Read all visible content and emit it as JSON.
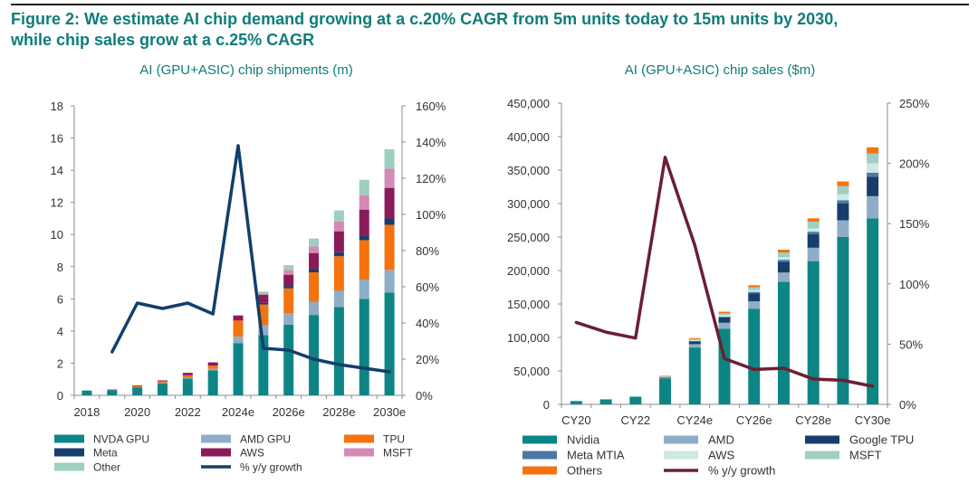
{
  "figure": {
    "title_line1": "Figure 2: We estimate AI chip demand growing at a c.20% CAGR from 5m units today to 15m units by 2030,",
    "title_line2": "while chip sales grow at a c.25% CAGR"
  },
  "chart_data": [
    {
      "type": "bar",
      "stacked": true,
      "title": "AI (GPU+ASIC) chip shipments (m)",
      "categories": [
        "2018",
        "2019",
        "2020",
        "2021",
        "2022",
        "2023",
        "2024e",
        "2025e",
        "2026e",
        "2027e",
        "2028e",
        "2029e",
        "2030e"
      ],
      "tick_labels": [
        "2018",
        "2020",
        "2022",
        "2024e",
        "2026e",
        "2028e",
        "2030e"
      ],
      "tick_label_indices": [
        0,
        2,
        4,
        6,
        8,
        10,
        12
      ],
      "ylim": [
        0,
        18
      ],
      "yticks": [
        "0",
        "2",
        "4",
        "6",
        "8",
        "10",
        "12",
        "14",
        "16",
        "18"
      ],
      "y2lim": [
        0,
        160
      ],
      "y2ticks": [
        "0%",
        "20%",
        "40%",
        "60%",
        "80%",
        "100%",
        "120%",
        "140%",
        "160%"
      ],
      "series": [
        {
          "name": "NVDA GPU",
          "color": "#0e8585",
          "values": [
            0.3,
            0.33,
            0.5,
            0.75,
            1.05,
            1.55,
            3.25,
            3.75,
            4.4,
            5.0,
            5.5,
            6.0,
            6.4
          ]
        },
        {
          "name": "AMD GPU",
          "color": "#8fadc8",
          "values": [
            0,
            0,
            0.02,
            0.03,
            0.05,
            0.1,
            0.4,
            0.6,
            0.7,
            0.8,
            1.0,
            1.2,
            1.4
          ]
        },
        {
          "name": "TPU",
          "color": "#f5730f",
          "values": [
            0,
            0.05,
            0.07,
            0.1,
            0.15,
            0.2,
            1.0,
            1.3,
            1.55,
            1.85,
            2.15,
            2.45,
            2.8
          ]
        },
        {
          "name": "Meta",
          "color": "#173e6b",
          "values": [
            0,
            0,
            0,
            0,
            0,
            0,
            0,
            0.1,
            0.15,
            0.2,
            0.25,
            0.3,
            0.4
          ]
        },
        {
          "name": "AWS",
          "color": "#8a1a59",
          "values": [
            0,
            0,
            0.01,
            0.05,
            0.15,
            0.2,
            0.3,
            0.5,
            0.7,
            1.0,
            1.3,
            1.6,
            1.9
          ]
        },
        {
          "name": "MSFT",
          "color": "#d48ab5",
          "values": [
            0,
            0,
            0,
            0,
            0,
            0,
            0,
            0.1,
            0.3,
            0.4,
            0.6,
            0.9,
            1.2
          ]
        },
        {
          "name": "Other",
          "color": "#9fcec2",
          "values": [
            0,
            0,
            0,
            0,
            0,
            0,
            0.05,
            0.1,
            0.3,
            0.5,
            0.7,
            0.95,
            1.2
          ]
        }
      ],
      "line_series": {
        "name": "% y/y growth",
        "color": "#123f6a",
        "axis": "right",
        "values": [
          null,
          24,
          51,
          48,
          51,
          45,
          138,
          26,
          25,
          20,
          17,
          15,
          13
        ]
      },
      "legend": {
        "position": "bottom",
        "columns": 3
      }
    },
    {
      "type": "bar",
      "stacked": true,
      "title": "AI (GPU+ASIC) chip sales ($m)",
      "categories": [
        "CY20",
        "CY21",
        "CY22",
        "CY23",
        "CY24e",
        "CY25e",
        "CY26e",
        "CY27e",
        "CY28e",
        "CY29e",
        "CY30e"
      ],
      "tick_labels": [
        "CY20",
        "CY22",
        "CY24e",
        "CY26e",
        "CY28e",
        "CY30e"
      ],
      "tick_label_indices": [
        0,
        2,
        4,
        6,
        8,
        10
      ],
      "ylim": [
        0,
        450000
      ],
      "yticks": [
        "0",
        "50,000",
        "100,000",
        "150,000",
        "200,000",
        "250,000",
        "300,000",
        "350,000",
        "400,000",
        "450,000"
      ],
      "y2lim": [
        0,
        250
      ],
      "y2ticks": [
        "0%",
        "50%",
        "100%",
        "150%",
        "200%",
        "250%"
      ],
      "series": [
        {
          "name": "Nvidia",
          "color": "#0e8585",
          "values": [
            5000,
            7500,
            11500,
            39000,
            85000,
            113000,
            143000,
            183000,
            214000,
            250000,
            278000
          ]
        },
        {
          "name": "AMD",
          "color": "#8fadc8",
          "values": [
            0,
            0,
            0,
            1000,
            5000,
            9000,
            11000,
            14000,
            20000,
            25000,
            33000
          ]
        },
        {
          "name": "Google TPU",
          "color": "#173e6b",
          "values": [
            0,
            0,
            0,
            800,
            4000,
            8000,
            12000,
            16000,
            20000,
            25000,
            29000
          ]
        },
        {
          "name": "Meta MTIA",
          "color": "#4b79a6",
          "values": [
            0,
            0,
            0,
            0,
            500,
            1000,
            2000,
            3000,
            4000,
            5000,
            6000
          ]
        },
        {
          "name": "AWS",
          "color": "#cfe8e2",
          "values": [
            0,
            0,
            0,
            500,
            1500,
            2500,
            3000,
            4000,
            5000,
            9000,
            14000
          ]
        },
        {
          "name": "MSFT",
          "color": "#9fcec2",
          "values": [
            0,
            0,
            0,
            500,
            1500,
            2500,
            4000,
            7000,
            10000,
            12000,
            15000
          ]
        },
        {
          "name": "Others",
          "color": "#f5730f",
          "values": [
            0,
            0,
            0,
            500,
            1500,
            2500,
            3000,
            4000,
            5000,
            7000,
            9000
          ]
        }
      ],
      "line_series": {
        "name": "% y/y growth",
        "color": "#6b1f33",
        "axis": "right",
        "values": [
          68,
          60,
          55,
          205,
          132,
          38,
          29,
          30,
          21,
          20,
          15
        ]
      },
      "legend": {
        "position": "bottom",
        "columns": 3
      }
    }
  ]
}
